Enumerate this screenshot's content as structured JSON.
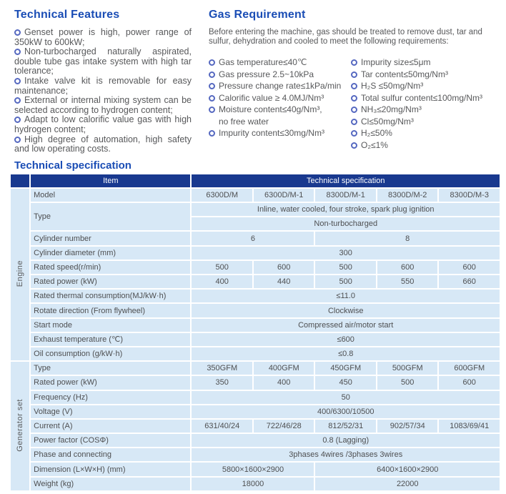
{
  "colors": {
    "heading_blue": "#1a4db5",
    "table_header_navy": "#19398f",
    "table_row_blue": "#d7e8f6",
    "body_text_gray": "#57585a"
  },
  "features": {
    "title": "Technical Features",
    "items": [
      "Genset power is high, power range of 350kW to 600kW;",
      "Non-turbocharged naturally aspirated, double tube gas intake system with high tar tolerance;",
      "Intake valve kit is removable for easy maintenance;",
      "External or internal mixing system can be selected according to hydrogen content;",
      "Adapt to low calorific value gas with high hydrogen content;",
      "High degree of automation, high safety and low operating costs."
    ]
  },
  "gas": {
    "title": "Gas Requirement",
    "intro": "Before entering the machine, gas should be treated to remove dust, tar and sulfur, dehydration and cooled to meet the following requirements:",
    "left_items": [
      {
        "text": "Gas temperature≤40℃"
      },
      {
        "text": "Gas pressure 2.5~10kPa"
      },
      {
        "text": "Pressure change rate≤1kPa/min"
      },
      {
        "text": "Calorific value ≥ 4.0MJ/Nm³"
      },
      {
        "text": "Moisture content≤40g/Nm³,",
        "text2": "no free water"
      },
      {
        "text": "Impurity content≤30mg/Nm³"
      }
    ],
    "right_items": [
      {
        "text": "Impurity size≤5μm"
      },
      {
        "text": "Tar content≤50mg/Nm³"
      },
      {
        "text": "H₂S ≤50mg/Nm³"
      },
      {
        "text": "Total sulfur content≤100mg/Nm³"
      },
      {
        "text": "NH₃≤20mg/Nm³"
      },
      {
        "text": "Cl≤50mg/Nm³"
      },
      {
        "text": "H₂≤50%"
      },
      {
        "text": "O₂≤1%"
      }
    ]
  },
  "spec": {
    "title": "Technical specification",
    "header": {
      "item": "Item",
      "spec": "Technical specification"
    },
    "groups": [
      {
        "label": "Engine",
        "rows": [
          {
            "item": "Model",
            "cells": [
              [
                "6300D/M",
                1
              ],
              [
                "6300D/M-1",
                1
              ],
              [
                "8300D/M-1",
                1
              ],
              [
                "8300D/M-2",
                1
              ],
              [
                "8300D/M-3",
                1
              ]
            ]
          },
          {
            "item": "Type",
            "rowspan": 2,
            "cells": [
              [
                "Inline, water cooled, four stroke, spark plug ignition",
                5
              ]
            ]
          },
          {
            "item": null,
            "cells": [
              [
                "Non-turbocharged",
                5
              ]
            ]
          },
          {
            "item": "Cylinder number",
            "cells": [
              [
                "6",
                2
              ],
              [
                "8",
                3
              ]
            ]
          },
          {
            "item": "Cylinder diameter (mm)",
            "cells": [
              [
                "300",
                5
              ]
            ]
          },
          {
            "item": "Rated speed(r/min)",
            "cells": [
              [
                "500",
                1
              ],
              [
                "600",
                1
              ],
              [
                "500",
                1
              ],
              [
                "600",
                1
              ],
              [
                "600",
                1
              ]
            ]
          },
          {
            "item": "Rated power (kW)",
            "cells": [
              [
                "400",
                1
              ],
              [
                "440",
                1
              ],
              [
                "500",
                1
              ],
              [
                "550",
                1
              ],
              [
                "660",
                1
              ]
            ]
          },
          {
            "item": "Rated thermal consumption(MJ/kW·h)",
            "cells": [
              [
                "≤11.0",
                5
              ]
            ]
          },
          {
            "item": "Rotate direction (From flywheel)",
            "cells": [
              [
                "Clockwise",
                5
              ]
            ]
          },
          {
            "item": "Start mode",
            "cells": [
              [
                "Compressed air/motor start",
                5
              ]
            ]
          },
          {
            "item": "Exhaust temperature (℃)",
            "cells": [
              [
                "≤600",
                5
              ]
            ]
          },
          {
            "item": "Oil consumption (g/kW·h)",
            "cells": [
              [
                "≤0.8",
                5
              ]
            ]
          }
        ]
      },
      {
        "label": "Generator set",
        "rows": [
          {
            "item": "Type",
            "cells": [
              [
                "350GFM",
                1
              ],
              [
                "400GFM",
                1
              ],
              [
                "450GFM",
                1
              ],
              [
                "500GFM",
                1
              ],
              [
                "600GFM",
                1
              ]
            ]
          },
          {
            "item": "Rated power (kW)",
            "cells": [
              [
                "350",
                1
              ],
              [
                "400",
                1
              ],
              [
                "450",
                1
              ],
              [
                "500",
                1
              ],
              [
                "600",
                1
              ]
            ]
          },
          {
            "item": "Frequency (Hz)",
            "cells": [
              [
                "50",
                5
              ]
            ]
          },
          {
            "item": "Voltage (V)",
            "cells": [
              [
                "400/6300/10500",
                5
              ]
            ]
          },
          {
            "item": "Current (A)",
            "cells": [
              [
                "631/40/24",
                1
              ],
              [
                "722/46/28",
                1
              ],
              [
                "812/52/31",
                1
              ],
              [
                "902/57/34",
                1
              ],
              [
                "1083/69/41",
                1
              ]
            ]
          },
          {
            "item": "Power factor (COSΦ)",
            "cells": [
              [
                "0.8 (Lagging)",
                5
              ]
            ]
          },
          {
            "item": "Phase and connecting",
            "cells": [
              [
                "3phases 4wires /3phases 3wires",
                5
              ]
            ]
          },
          {
            "item": "Dimension (L×W×H) (mm)",
            "cells": [
              [
                "5800×1600×2900",
                2
              ],
              [
                "6400×1600×2900",
                3
              ]
            ]
          },
          {
            "item": "Weight (kg)",
            "cells": [
              [
                "18000",
                2
              ],
              [
                "22000",
                3
              ]
            ]
          }
        ]
      }
    ]
  }
}
